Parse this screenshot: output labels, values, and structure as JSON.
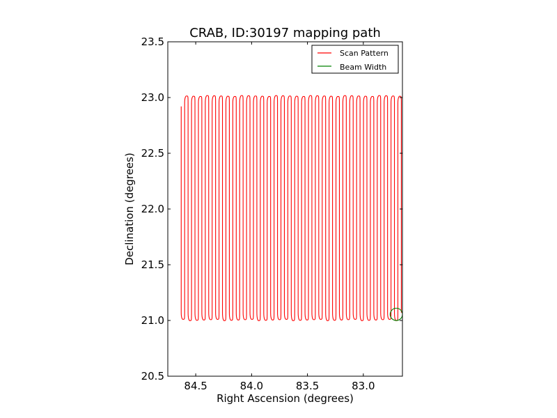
{
  "chart_data": {
    "type": "line",
    "title": "CRAB, ID:30197 mapping path",
    "xlabel": "Right Ascension (degrees)",
    "ylabel": "Declination (degrees)",
    "xlim": [
      84.75,
      82.65
    ],
    "ylim": [
      20.5,
      23.5
    ],
    "x_inverted": true,
    "x_ticks": [
      84.5,
      84.0,
      83.5,
      83.0
    ],
    "x_tick_labels": [
      "84.5",
      "84.0",
      "83.5",
      "83.0"
    ],
    "y_ticks": [
      20.5,
      21.0,
      21.5,
      22.0,
      22.5,
      23.0,
      23.5
    ],
    "y_tick_labels": [
      "20.5",
      "21.0",
      "21.5",
      "22.0",
      "22.5",
      "23.0",
      "23.5"
    ],
    "grid": false,
    "legend_position": "top-right",
    "series": [
      {
        "name": "Scan Pattern",
        "color": "#ff0000",
        "kind": "raster-scan",
        "ra_start": 84.63,
        "ra_end": 82.66,
        "dec_low": 21.01,
        "dec_high": 23.01,
        "dec_start": 22.92,
        "n_passes": 65
      },
      {
        "name": "Beam Width",
        "color": "#008000",
        "kind": "circle",
        "center_ra": 82.705,
        "center_dec": 21.055,
        "radius_deg": 0.055
      }
    ]
  }
}
